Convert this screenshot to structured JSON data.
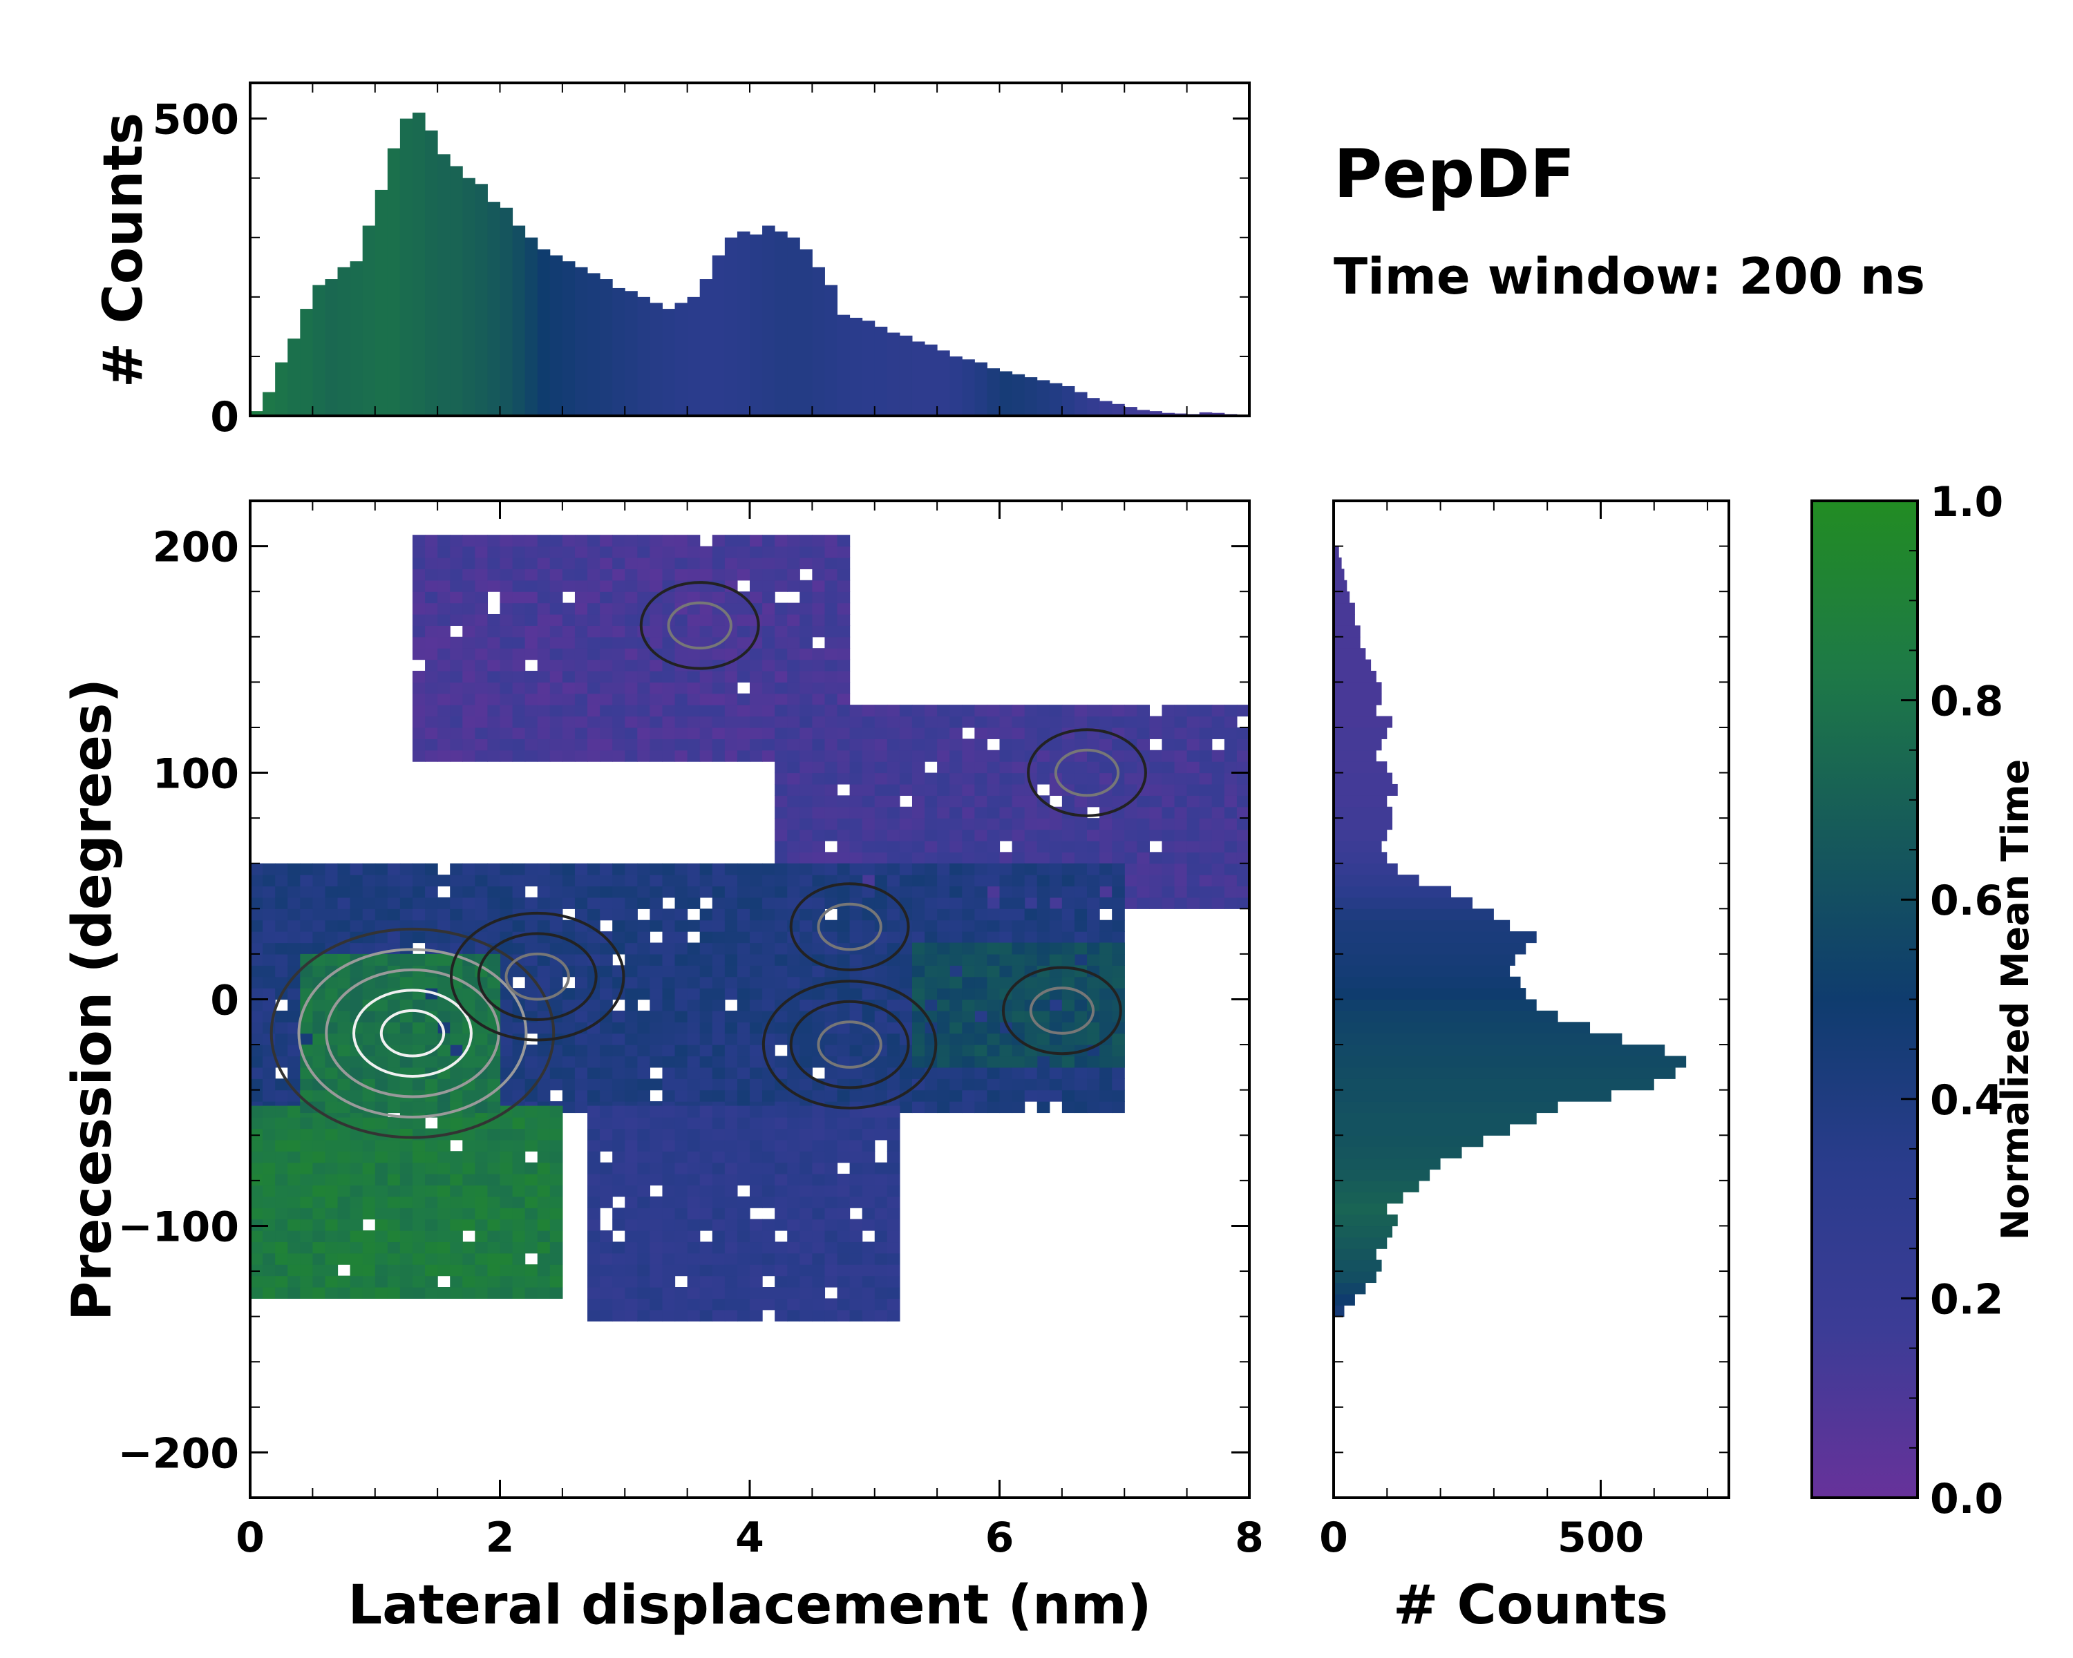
{
  "chart_data": {
    "title": "PepDF",
    "subtitle": "Time window: 200 ns",
    "colormap": {
      "name": "purple-navy-green",
      "stops": [
        "#67329a",
        "#3c3c96",
        "#2a3c8c",
        "#0f3c6e",
        "#165a5a",
        "#1e7a46",
        "#228c23"
      ]
    },
    "panels": [
      {
        "id": "top_histogram",
        "type": "bar",
        "orientation": "vertical",
        "xlim": [
          0,
          8
        ],
        "ylim": [
          0,
          560
        ],
        "ylabel": "# Counts",
        "yticks": [
          0,
          500
        ],
        "x": [
          0.0,
          0.1,
          0.2,
          0.3,
          0.4,
          0.5,
          0.6,
          0.7,
          0.8,
          0.9,
          1.0,
          1.1,
          1.2,
          1.3,
          1.4,
          1.5,
          1.6,
          1.7,
          1.8,
          1.9,
          2.0,
          2.1,
          2.2,
          2.3,
          2.4,
          2.5,
          2.6,
          2.7,
          2.8,
          2.9,
          3.0,
          3.1,
          3.2,
          3.3,
          3.4,
          3.5,
          3.6,
          3.7,
          3.8,
          3.9,
          4.0,
          4.1,
          4.2,
          4.3,
          4.4,
          4.5,
          4.6,
          4.7,
          4.8,
          4.9,
          5.0,
          5.1,
          5.2,
          5.3,
          5.4,
          5.5,
          5.6,
          5.7,
          5.8,
          5.9,
          6.0,
          6.1,
          6.2,
          6.3,
          6.4,
          6.5,
          6.6,
          6.7,
          6.8,
          6.9,
          7.0,
          7.1,
          7.2,
          7.3,
          7.4,
          7.5,
          7.6,
          7.7,
          7.8,
          7.9
        ],
        "values": [
          8,
          40,
          90,
          130,
          180,
          220,
          230,
          250,
          260,
          320,
          380,
          450,
          500,
          510,
          480,
          440,
          420,
          400,
          390,
          360,
          350,
          320,
          300,
          280,
          270,
          260,
          250,
          240,
          230,
          215,
          210,
          200,
          190,
          180,
          190,
          200,
          230,
          270,
          300,
          310,
          305,
          320,
          310,
          300,
          280,
          250,
          220,
          170,
          165,
          160,
          150,
          140,
          135,
          125,
          120,
          110,
          100,
          95,
          90,
          80,
          75,
          70,
          65,
          60,
          55,
          50,
          40,
          30,
          25,
          20,
          15,
          10,
          8,
          5,
          4,
          3,
          6,
          5,
          3,
          2
        ],
        "mean_time": [
          0.85,
          0.82,
          0.8,
          0.78,
          0.78,
          0.76,
          0.74,
          0.75,
          0.76,
          0.77,
          0.78,
          0.78,
          0.76,
          0.75,
          0.73,
          0.72,
          0.72,
          0.7,
          0.68,
          0.66,
          0.64,
          0.6,
          0.55,
          0.5,
          0.48,
          0.46,
          0.44,
          0.43,
          0.42,
          0.4,
          0.39,
          0.37,
          0.36,
          0.35,
          0.34,
          0.33,
          0.32,
          0.32,
          0.33,
          0.34,
          0.35,
          0.36,
          0.37,
          0.37,
          0.37,
          0.36,
          0.35,
          0.34,
          0.33,
          0.32,
          0.32,
          0.31,
          0.31,
          0.3,
          0.3,
          0.3,
          0.32,
          0.35,
          0.38,
          0.42,
          0.45,
          0.44,
          0.42,
          0.4,
          0.38,
          0.35,
          0.3,
          0.25,
          0.2,
          0.18,
          0.16,
          0.15,
          0.14,
          0.14,
          0.13,
          0.13,
          0.12,
          0.12,
          0.12,
          0.12
        ]
      },
      {
        "id": "main_heatmap",
        "type": "heatmap",
        "xlim": [
          0,
          8
        ],
        "ylim": [
          -220,
          220
        ],
        "xticks": [
          0,
          2,
          4,
          6,
          8
        ],
        "yticks": [
          -200,
          -100,
          0,
          100,
          200
        ],
        "xlabel": "Lateral displacement (nm)",
        "ylabel": "Precession (degrees)",
        "regions": [
          {
            "name": "upper-arm",
            "x": [
              1.3,
              4.8
            ],
            "y": [
              105,
              205
            ],
            "mean_time": 0.12
          },
          {
            "name": "right-arm",
            "x": [
              4.2,
              8.0
            ],
            "y": [
              40,
              130
            ],
            "mean_time": 0.15
          },
          {
            "name": "central-band",
            "x": [
              0.0,
              7.0
            ],
            "y": [
              -50,
              60
            ],
            "mean_time": 0.4
          },
          {
            "name": "lower-left",
            "x": [
              0.0,
              2.5
            ],
            "y": [
              -132,
              -50
            ],
            "mean_time": 0.85
          },
          {
            "name": "lower-middle",
            "x": [
              2.7,
              5.2
            ],
            "y": [
              -142,
              -50
            ],
            "mean_time": 0.3
          },
          {
            "name": "left-dense-core",
            "x": [
              0.4,
              2.0
            ],
            "y": [
              -50,
              20
            ],
            "mean_time": 0.8
          },
          {
            "name": "right-tail",
            "x": [
              5.3,
              7.0
            ],
            "y": [
              -30,
              25
            ],
            "mean_time": 0.6
          }
        ],
        "contour_peaks": [
          {
            "x": 1.3,
            "y": -15,
            "level": "high"
          },
          {
            "x": 2.3,
            "y": 10,
            "level": "mid"
          },
          {
            "x": 4.8,
            "y": -20,
            "level": "mid"
          },
          {
            "x": 4.8,
            "y": 32,
            "level": "low"
          },
          {
            "x": 6.5,
            "y": -5,
            "level": "low"
          },
          {
            "x": 3.6,
            "y": 165,
            "level": "low"
          },
          {
            "x": 6.7,
            "y": 100,
            "level": "low"
          }
        ]
      },
      {
        "id": "right_histogram",
        "type": "bar",
        "orientation": "horizontal",
        "xlim": [
          0,
          740
        ],
        "ylim": [
          -220,
          220
        ],
        "xlabel": "# Counts",
        "xticks": [
          0,
          500
        ],
        "bin_centers": [
          -137.5,
          -132.5,
          -127.5,
          -122.5,
          -117.5,
          -112.5,
          -107.5,
          -102.5,
          -97.5,
          -92.5,
          -87.5,
          -82.5,
          -77.5,
          -72.5,
          -67.5,
          -62.5,
          -57.5,
          -52.5,
          -47.5,
          -42.5,
          -37.5,
          -32.5,
          -27.5,
          -22.5,
          -17.5,
          -12.5,
          -7.5,
          -2.5,
          2.5,
          7.5,
          12.5,
          17.5,
          22.5,
          27.5,
          32.5,
          37.5,
          42.5,
          47.5,
          52.5,
          57.5,
          62.5,
          67.5,
          72.5,
          77.5,
          82.5,
          87.5,
          92.5,
          97.5,
          102.5,
          107.5,
          112.5,
          117.5,
          122.5,
          127.5,
          132.5,
          137.5,
          142.5,
          147.5,
          152.5,
          157.5,
          162.5,
          167.5,
          172.5,
          177.5,
          182.5,
          187.5,
          192.5,
          197.5
        ],
        "values": [
          20,
          40,
          60,
          80,
          90,
          80,
          100,
          110,
          120,
          100,
          130,
          160,
          180,
          200,
          240,
          280,
          330,
          380,
          420,
          520,
          600,
          640,
          660,
          620,
          540,
          480,
          420,
          380,
          360,
          350,
          330,
          340,
          360,
          380,
          330,
          300,
          260,
          220,
          160,
          120,
          100,
          90,
          100,
          110,
          110,
          100,
          120,
          110,
          100,
          80,
          90,
          100,
          110,
          80,
          90,
          90,
          80,
          70,
          60,
          50,
          50,
          40,
          40,
          30,
          25,
          20,
          15,
          10
        ],
        "mean_time": [
          0.45,
          0.5,
          0.55,
          0.6,
          0.62,
          0.64,
          0.66,
          0.68,
          0.7,
          0.72,
          0.7,
          0.68,
          0.66,
          0.65,
          0.64,
          0.63,
          0.62,
          0.62,
          0.61,
          0.6,
          0.6,
          0.59,
          0.58,
          0.57,
          0.56,
          0.55,
          0.54,
          0.52,
          0.5,
          0.48,
          0.46,
          0.45,
          0.44,
          0.43,
          0.42,
          0.4,
          0.36,
          0.32,
          0.28,
          0.24,
          0.2,
          0.18,
          0.16,
          0.15,
          0.15,
          0.14,
          0.14,
          0.14,
          0.13,
          0.13,
          0.13,
          0.13,
          0.12,
          0.12,
          0.12,
          0.12,
          0.12,
          0.12,
          0.12,
          0.12,
          0.12,
          0.12,
          0.12,
          0.12,
          0.12,
          0.12,
          0.12,
          0.12
        ]
      },
      {
        "id": "colorbar",
        "type": "colorbar",
        "label": "Normalized Mean Time",
        "range": [
          0.0,
          1.0
        ],
        "ticks": [
          0.0,
          0.2,
          0.4,
          0.6,
          0.8,
          1.0
        ],
        "tick_labels": [
          "0.0",
          "0.2",
          "0.4",
          "0.6",
          "0.8",
          "1.0"
        ]
      }
    ]
  }
}
